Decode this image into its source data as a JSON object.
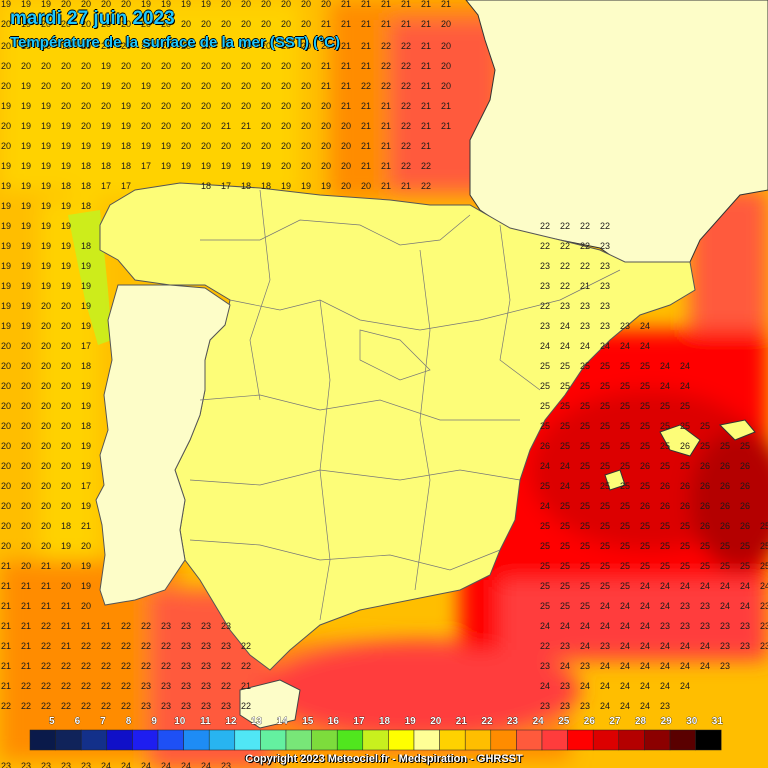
{
  "map": {
    "date_title": "mardi 27 juin 2023",
    "subtitle": "Température de la surface de la mer (SST) (°C)",
    "copyright": "Copyright 2023 Meteociel.fr - Medspiration - GHRSST",
    "region": "Iberian Peninsula",
    "variable": "Sea surface temperature",
    "unit": "°C",
    "label_rows": [
      {
        "y": 0,
        "cells": [
          "19",
          "19",
          "19",
          "20",
          "20",
          "20",
          "20",
          "19",
          "19",
          "19",
          "19",
          "20",
          "20",
          "20",
          "20",
          "20",
          "20",
          "21",
          "21",
          "21",
          "21",
          "21",
          "21"
        ]
      },
      {
        "y": 20,
        "cells": [
          "20",
          "19",
          "20",
          "20",
          "20",
          "20",
          "20",
          "20",
          "20",
          "20",
          "20",
          "20",
          "20",
          "20",
          "20",
          "20",
          "21",
          "21",
          "21",
          "21",
          "21",
          "21",
          "20"
        ]
      },
      {
        "y": 42,
        "cells": [
          "20",
          "19",
          "20",
          "19",
          "20",
          "20",
          "20",
          "20",
          "20",
          "20",
          "20",
          "20",
          "20",
          "20",
          "20",
          "20",
          "20",
          "21",
          "21",
          "22",
          "22",
          "21",
          "20"
        ]
      },
      {
        "y": 62,
        "cells": [
          "20",
          "20",
          "20",
          "20",
          "20",
          "19",
          "20",
          "20",
          "20",
          "20",
          "20",
          "20",
          "20",
          "20",
          "20",
          "20",
          "21",
          "21",
          "21",
          "22",
          "22",
          "21",
          "20"
        ]
      },
      {
        "y": 82,
        "cells": [
          "20",
          "19",
          "20",
          "20",
          "20",
          "19",
          "20",
          "19",
          "20",
          "20",
          "20",
          "20",
          "20",
          "20",
          "20",
          "20",
          "21",
          "21",
          "22",
          "22",
          "22",
          "21",
          "20"
        ]
      },
      {
        "y": 102,
        "cells": [
          "19",
          "19",
          "19",
          "20",
          "20",
          "20",
          "19",
          "20",
          "20",
          "20",
          "20",
          "20",
          "20",
          "20",
          "20",
          "20",
          "20",
          "21",
          "21",
          "21",
          "22",
          "21",
          "21"
        ]
      },
      {
        "y": 122,
        "cells": [
          "20",
          "19",
          "19",
          "19",
          "20",
          "19",
          "19",
          "20",
          "20",
          "20",
          "20",
          "21",
          "21",
          "20",
          "20",
          "20",
          "20",
          "20",
          "21",
          "21",
          "22",
          "21",
          "21"
        ]
      },
      {
        "y": 142,
        "cells": [
          "20",
          "19",
          "19",
          "19",
          "19",
          "19",
          "18",
          "19",
          "19",
          "20",
          "20",
          "20",
          "20",
          "20",
          "20",
          "20",
          "20",
          "20",
          "21",
          "21",
          "22",
          "21"
        ]
      },
      {
        "y": 162,
        "cells": [
          "19",
          "19",
          "19",
          "19",
          "18",
          "18",
          "18",
          "17",
          "19",
          "19",
          "19",
          "19",
          "19",
          "19",
          "20",
          "20",
          "20",
          "20",
          "21",
          "21",
          "22",
          "22"
        ]
      },
      {
        "y": 182,
        "cells": [
          "19",
          "19",
          "19",
          "18",
          "18",
          "17",
          "17",
          "",
          "",
          "",
          "18",
          "17",
          "18",
          "18",
          "19",
          "19",
          "19",
          "20",
          "20",
          "21",
          "21",
          "22"
        ]
      },
      {
        "y": 202,
        "cells": [
          "19",
          "19",
          "19",
          "19",
          "18"
        ]
      },
      {
        "y": 222,
        "cells": [
          "19",
          "19",
          "19",
          "19"
        ]
      },
      {
        "y": 242,
        "cells": [
          "19",
          "19",
          "19",
          "19",
          "18"
        ]
      },
      {
        "y": 262,
        "cells": [
          "19",
          "19",
          "19",
          "19",
          "19"
        ]
      },
      {
        "y": 282,
        "cells": [
          "19",
          "19",
          "19",
          "19",
          "19"
        ]
      },
      {
        "y": 302,
        "cells": [
          "19",
          "19",
          "20",
          "20",
          "19"
        ]
      },
      {
        "y": 322,
        "cells": [
          "19",
          "19",
          "20",
          "20",
          "19"
        ]
      },
      {
        "y": 342,
        "cells": [
          "20",
          "20",
          "20",
          "20",
          "17"
        ]
      },
      {
        "y": 362,
        "cells": [
          "20",
          "20",
          "20",
          "20",
          "18"
        ]
      },
      {
        "y": 382,
        "cells": [
          "20",
          "20",
          "20",
          "20",
          "19"
        ]
      },
      {
        "y": 402,
        "cells": [
          "20",
          "20",
          "20",
          "20",
          "19"
        ]
      },
      {
        "y": 422,
        "cells": [
          "20",
          "20",
          "20",
          "20",
          "18"
        ]
      },
      {
        "y": 442,
        "cells": [
          "20",
          "20",
          "20",
          "20",
          "19"
        ]
      },
      {
        "y": 462,
        "cells": [
          "20",
          "20",
          "20",
          "20",
          "19"
        ]
      },
      {
        "y": 482,
        "cells": [
          "20",
          "20",
          "20",
          "20",
          "17"
        ]
      },
      {
        "y": 502,
        "cells": [
          "20",
          "20",
          "20",
          "20",
          "19"
        ]
      },
      {
        "y": 522,
        "cells": [
          "20",
          "20",
          "20",
          "18",
          "21"
        ]
      },
      {
        "y": 542,
        "cells": [
          "20",
          "20",
          "20",
          "19",
          "20"
        ]
      },
      {
        "y": 562,
        "cells": [
          "21",
          "20",
          "21",
          "20",
          "19"
        ]
      },
      {
        "y": 582,
        "cells": [
          "21",
          "21",
          "21",
          "20",
          "19"
        ]
      },
      {
        "y": 602,
        "cells": [
          "21",
          "21",
          "21",
          "21",
          "20"
        ]
      },
      {
        "y": 622,
        "cells": [
          "21",
          "21",
          "22",
          "21",
          "21",
          "21",
          "22",
          "22",
          "23",
          "23",
          "23",
          "23"
        ]
      },
      {
        "y": 642,
        "cells": [
          "21",
          "21",
          "22",
          "21",
          "22",
          "22",
          "22",
          "22",
          "22",
          "23",
          "23",
          "23",
          "22"
        ]
      },
      {
        "y": 662,
        "cells": [
          "21",
          "21",
          "22",
          "22",
          "22",
          "22",
          "22",
          "22",
          "22",
          "23",
          "23",
          "22",
          "22"
        ]
      },
      {
        "y": 682,
        "cells": [
          "21",
          "22",
          "22",
          "22",
          "22",
          "22",
          "22",
          "23",
          "23",
          "23",
          "23",
          "22",
          "21"
        ]
      },
      {
        "y": 702,
        "cells": [
          "22",
          "22",
          "22",
          "22",
          "22",
          "22",
          "22",
          "23",
          "23",
          "23",
          "23",
          "23",
          "22"
        ]
      },
      {
        "y": 762,
        "cells": [
          "23",
          "23",
          "23",
          "23",
          "23",
          "24",
          "24",
          "24",
          "24",
          "24",
          "24",
          "23"
        ]
      }
    ],
    "east_rows": [
      {
        "y": 222,
        "cells": [
          "22",
          "22",
          "22",
          "22"
        ]
      },
      {
        "y": 242,
        "cells": [
          "22",
          "22",
          "22",
          "23"
        ]
      },
      {
        "y": 262,
        "cells": [
          "23",
          "22",
          "22",
          "23"
        ]
      },
      {
        "y": 282,
        "cells": [
          "23",
          "22",
          "21",
          "23"
        ]
      },
      {
        "y": 302,
        "cells": [
          "22",
          "23",
          "23",
          "23"
        ]
      },
      {
        "y": 322,
        "cells": [
          "23",
          "24",
          "23",
          "23",
          "23",
          "24"
        ]
      },
      {
        "y": 342,
        "cells": [
          "24",
          "24",
          "24",
          "24",
          "24",
          "24"
        ]
      },
      {
        "y": 362,
        "cells": [
          "25",
          "25",
          "25",
          "25",
          "25",
          "25",
          "24",
          "24"
        ]
      },
      {
        "y": 382,
        "cells": [
          "25",
          "25",
          "25",
          "25",
          "25",
          "25",
          "24",
          "24"
        ]
      },
      {
        "y": 402,
        "cells": [
          "25",
          "25",
          "25",
          "25",
          "25",
          "25",
          "25",
          "25"
        ]
      },
      {
        "y": 422,
        "cells": [
          "25",
          "25",
          "25",
          "25",
          "25",
          "25",
          "25",
          "25",
          "25"
        ]
      },
      {
        "y": 442,
        "cells": [
          "26",
          "25",
          "25",
          "25",
          "25",
          "25",
          "25",
          "26",
          "25",
          "25",
          "25"
        ]
      },
      {
        "y": 462,
        "cells": [
          "24",
          "24",
          "25",
          "25",
          "25",
          "26",
          "25",
          "25",
          "26",
          "26",
          "26"
        ]
      },
      {
        "y": 482,
        "cells": [
          "25",
          "24",
          "25",
          "25",
          "25",
          "25",
          "26",
          "26",
          "26",
          "26",
          "26"
        ]
      },
      {
        "y": 502,
        "cells": [
          "24",
          "25",
          "25",
          "25",
          "25",
          "26",
          "26",
          "26",
          "26",
          "26",
          "26"
        ]
      },
      {
        "y": 522,
        "cells": [
          "25",
          "25",
          "25",
          "25",
          "25",
          "25",
          "25",
          "25",
          "26",
          "26",
          "26",
          "25"
        ]
      },
      {
        "y": 542,
        "cells": [
          "25",
          "25",
          "25",
          "25",
          "25",
          "25",
          "25",
          "25",
          "25",
          "25",
          "25",
          "25"
        ]
      },
      {
        "y": 562,
        "cells": [
          "25",
          "25",
          "25",
          "25",
          "25",
          "25",
          "25",
          "25",
          "25",
          "25",
          "25",
          "25"
        ]
      },
      {
        "y": 582,
        "cells": [
          "25",
          "25",
          "25",
          "25",
          "25",
          "24",
          "24",
          "24",
          "24",
          "24",
          "24",
          "24",
          "24"
        ]
      },
      {
        "y": 602,
        "cells": [
          "25",
          "25",
          "25",
          "24",
          "24",
          "24",
          "24",
          "23",
          "23",
          "24",
          "24",
          "23",
          "23"
        ]
      },
      {
        "y": 622,
        "cells": [
          "24",
          "24",
          "24",
          "24",
          "24",
          "24",
          "23",
          "23",
          "23",
          "23",
          "23",
          "23"
        ]
      },
      {
        "y": 642,
        "cells": [
          "22",
          "23",
          "24",
          "23",
          "24",
          "24",
          "24",
          "24",
          "24",
          "23",
          "23",
          "23"
        ]
      },
      {
        "y": 662,
        "cells": [
          "23",
          "24",
          "23",
          "24",
          "24",
          "24",
          "24",
          "24",
          "24",
          "23"
        ]
      },
      {
        "y": 682,
        "cells": [
          "24",
          "23",
          "24",
          "24",
          "24",
          "24",
          "24",
          "24"
        ]
      },
      {
        "y": 702,
        "cells": [
          "23",
          "23",
          "23",
          "24",
          "24",
          "24",
          "23"
        ]
      }
    ],
    "legend": {
      "values": [
        "5",
        "6",
        "7",
        "8",
        "9",
        "10",
        "11",
        "12",
        "13",
        "14",
        "15",
        "16",
        "17",
        "18",
        "19",
        "20",
        "21",
        "22",
        "23",
        "24",
        "25",
        "26",
        "27",
        "28",
        "29",
        "30",
        "31"
      ],
      "colors": [
        "#0a1a4a",
        "#10235a",
        "#13308a",
        "#1010c8",
        "#1e1ef0",
        "#1e50f5",
        "#1e8cf5",
        "#28b4f0",
        "#50e6f5",
        "#64f0a0",
        "#78e678",
        "#7ddc3c",
        "#50e61e",
        "#c8f01e",
        "#ffff00",
        "#ffff96",
        "#ffd200",
        "#ffbe00",
        "#ff8c00",
        "#ff5a3c",
        "#ff3c3c",
        "#ff0000",
        "#dc0000",
        "#b40000",
        "#8c0000",
        "#5a0000",
        "#000000"
      ]
    }
  }
}
